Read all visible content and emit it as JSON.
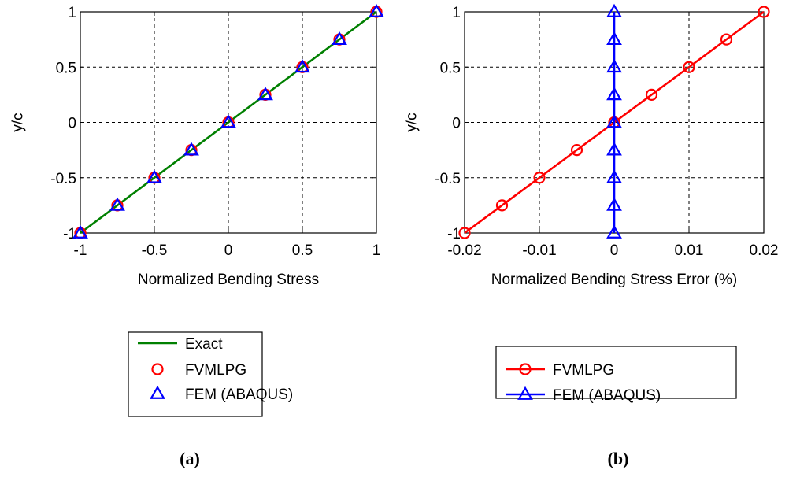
{
  "chart_data": [
    {
      "type": "line",
      "caption": "(a)",
      "xlabel": "Normalized Bending Stress",
      "ylabel": "y/c",
      "xlim": [
        -1,
        1
      ],
      "ylim": [
        -1,
        1
      ],
      "xticks": [
        -1,
        -0.5,
        0,
        0.5,
        1
      ],
      "xtick_labels": [
        "-1",
        "-0.5",
        "0",
        "0.5",
        "1"
      ],
      "yticks": [
        -1,
        -0.5,
        0,
        0.5,
        1
      ],
      "ytick_labels": [
        "-1",
        "-0.5",
        "0",
        "0.5",
        "1"
      ],
      "grid": true,
      "legend_position": "below",
      "series": [
        {
          "name": "Exact",
          "style": "line",
          "color": "#008000",
          "x": [
            -1,
            1
          ],
          "y": [
            -1,
            1
          ]
        },
        {
          "name": "FVMLPG",
          "style": "circle",
          "color": "#ff0000",
          "x": [
            -1,
            -0.75,
            -0.5,
            -0.25,
            0,
            0.25,
            0.5,
            0.75,
            1
          ],
          "y": [
            -1,
            -0.75,
            -0.5,
            -0.25,
            0,
            0.25,
            0.5,
            0.75,
            1
          ]
        },
        {
          "name": "FEM (ABAQUS)",
          "style": "triangle",
          "color": "#0000ff",
          "x": [
            -1,
            -0.75,
            -0.5,
            -0.25,
            0,
            0.25,
            0.5,
            0.75,
            1
          ],
          "y": [
            -1,
            -0.75,
            -0.5,
            -0.25,
            0,
            0.25,
            0.5,
            0.75,
            1
          ]
        }
      ]
    },
    {
      "type": "line",
      "caption": "(b)",
      "xlabel": "Normalized Bending Stress Error (%)",
      "ylabel": "y/c",
      "xlim": [
        -0.02,
        0.02
      ],
      "ylim": [
        -1,
        1
      ],
      "xticks": [
        -0.02,
        -0.01,
        0,
        0.01,
        0.02
      ],
      "xtick_labels": [
        "-0.02",
        "-0.01",
        "0",
        "0.01",
        "0.02"
      ],
      "yticks": [
        -1,
        -0.5,
        0,
        0.5,
        1
      ],
      "ytick_labels": [
        "-1",
        "-0.5",
        "0",
        "0.5",
        "1"
      ],
      "grid": true,
      "legend_position": "below",
      "series": [
        {
          "name": "FVMLPG",
          "style": "line-circle",
          "color": "#ff0000",
          "x": [
            -0.02,
            -0.015,
            -0.01,
            -0.005,
            0,
            0.005,
            0.01,
            0.015,
            0.02
          ],
          "y": [
            -1,
            -0.75,
            -0.5,
            -0.25,
            0,
            0.25,
            0.5,
            0.75,
            1
          ]
        },
        {
          "name": "FEM (ABAQUS)",
          "style": "line-triangle",
          "color": "#0000ff",
          "x": [
            0,
            0,
            0,
            0,
            0,
            0,
            0,
            0,
            0
          ],
          "y": [
            -1,
            -0.75,
            -0.5,
            -0.25,
            0,
            0.25,
            0.5,
            0.75,
            1
          ]
        }
      ]
    }
  ]
}
